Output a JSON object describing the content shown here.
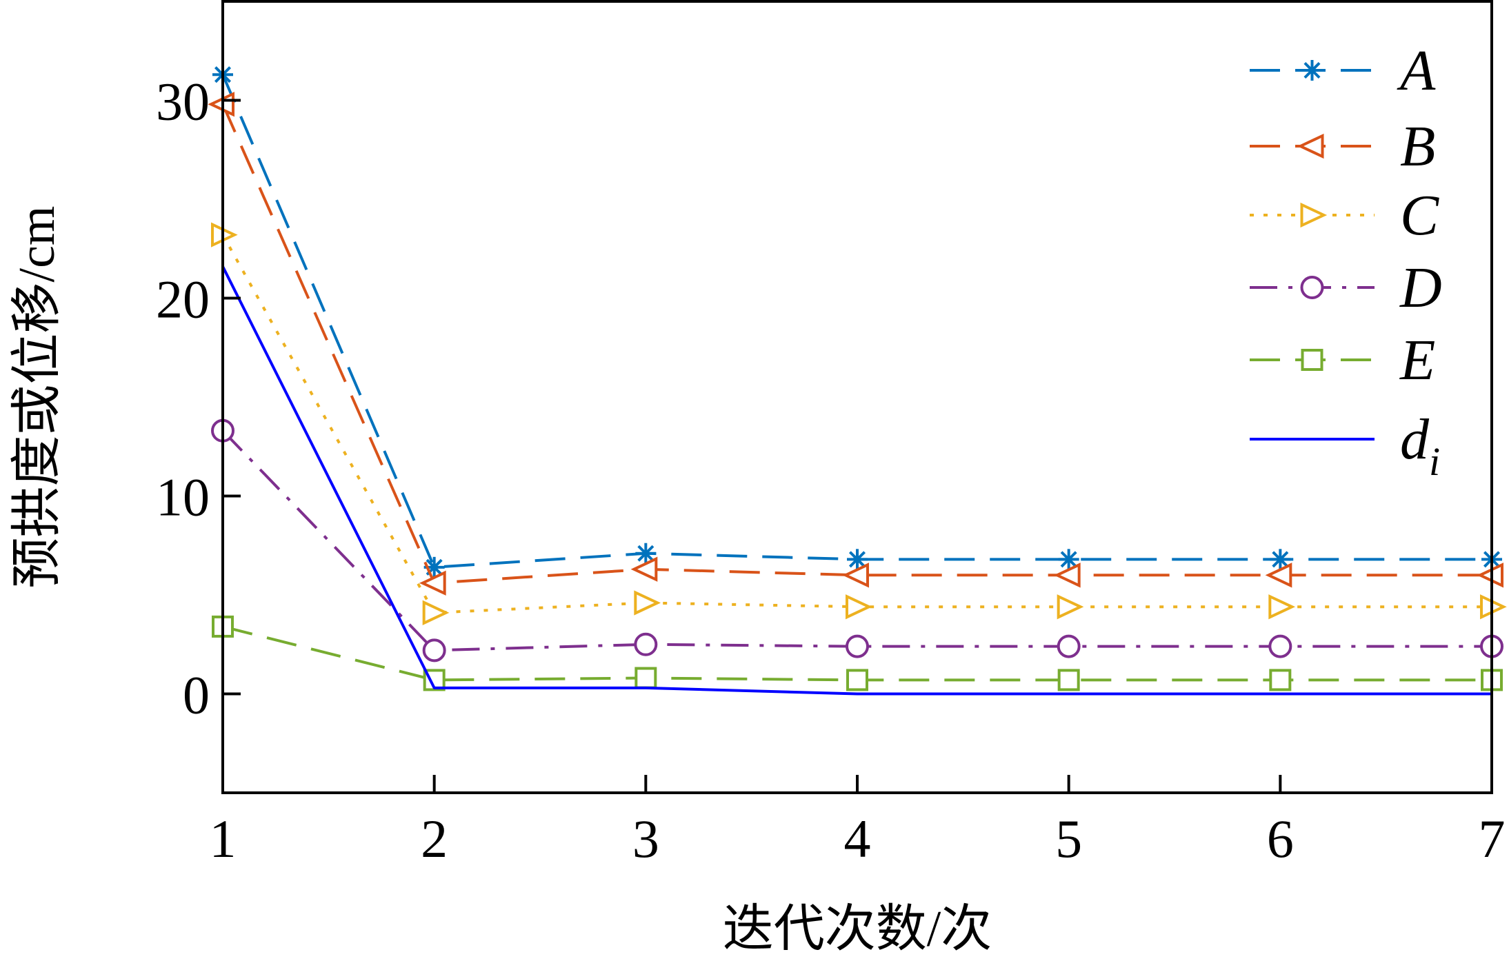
{
  "chart_data": {
    "type": "line",
    "xlabel": "迭代次数/次",
    "ylabel": "预拱度或位移/cm",
    "x": [
      1,
      2,
      3,
      4,
      5,
      6,
      7
    ],
    "xlim": [
      1,
      7
    ],
    "ylim": [
      -5,
      35
    ],
    "xticks": [
      "1",
      "2",
      "3",
      "4",
      "5",
      "6",
      "7"
    ],
    "yticks": [
      "0",
      "10",
      "20",
      "30"
    ],
    "ytick_values": [
      0,
      10,
      20,
      30
    ],
    "grid": false,
    "legend_position": "top-right",
    "series": [
      {
        "name": "A",
        "color": "#0072BD",
        "dash": "dashed",
        "marker": "asterisk",
        "values": [
          31.3,
          6.4,
          7.1,
          6.8,
          6.8,
          6.8,
          6.8
        ]
      },
      {
        "name": "B",
        "color": "#D95319",
        "dash": "dashed",
        "marker": "triangle-left",
        "values": [
          29.8,
          5.6,
          6.3,
          6.0,
          6.0,
          6.0,
          6.0
        ]
      },
      {
        "name": "C",
        "color": "#EDB120",
        "dash": "dotted",
        "marker": "triangle-right",
        "values": [
          23.2,
          4.1,
          4.6,
          4.4,
          4.4,
          4.4,
          4.4
        ]
      },
      {
        "name": "D",
        "color": "#7E2F8E",
        "dash": "dashdot",
        "marker": "circle",
        "values": [
          13.3,
          2.2,
          2.5,
          2.4,
          2.4,
          2.4,
          2.4
        ]
      },
      {
        "name": "E",
        "color": "#77AC30",
        "dash": "dashed",
        "marker": "square",
        "values": [
          3.4,
          0.7,
          0.8,
          0.7,
          0.7,
          0.7,
          0.7
        ]
      },
      {
        "name": "d",
        "subscript": "i",
        "color": "#0000FF",
        "dash": "solid",
        "marker": "none",
        "values": [
          21.6,
          0.3,
          0.3,
          0.0,
          0.0,
          0.0,
          0.0
        ]
      }
    ]
  }
}
